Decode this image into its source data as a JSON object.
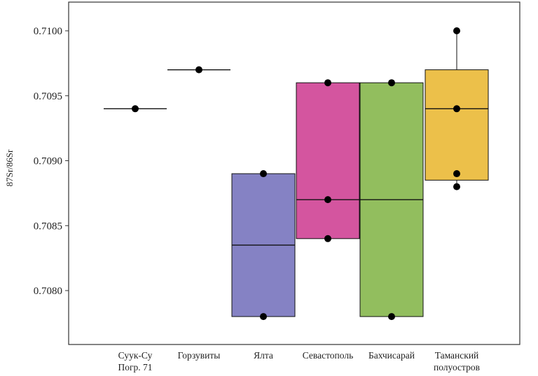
{
  "chart_data": {
    "type": "boxplot",
    "title": "",
    "xlabel": "",
    "ylabel": "87Sr/86Sr",
    "ylim": [
      0.70775,
      0.7102
    ],
    "yticks": [
      "0.7080",
      "0.7085",
      "0.7090",
      "0.7095",
      "0.7100"
    ],
    "yticks_values": [
      0.708,
      0.7085,
      0.709,
      0.7095,
      0.71
    ],
    "grid": false,
    "legend": "none",
    "categories": [
      [
        "Суук-Су",
        "Погр. 71"
      ],
      [
        "Горзувиты"
      ],
      [
        "Ялта"
      ],
      [
        "Севастополь"
      ],
      [
        "Бахчисарай"
      ],
      [
        "Таманский",
        "полуостров"
      ]
    ],
    "groups": [
      {
        "q1": 0.7094,
        "median": 0.7094,
        "q3": 0.7094,
        "whisker_low": 0.7094,
        "whisker_high": 0.7094,
        "points": [
          0.7094
        ],
        "color": "#ffffff"
      },
      {
        "q1": 0.7097,
        "median": 0.7097,
        "q3": 0.7097,
        "whisker_low": 0.7097,
        "whisker_high": 0.7097,
        "points": [
          0.7097
        ],
        "color": "#ffffff"
      },
      {
        "q1": 0.7078,
        "median": 0.70835,
        "q3": 0.7089,
        "whisker_low": 0.7078,
        "whisker_high": 0.7089,
        "points": [
          0.7089,
          0.7078
        ],
        "color": "#8582c4"
      },
      {
        "q1": 0.7084,
        "median": 0.7087,
        "q3": 0.7096,
        "whisker_low": 0.7084,
        "whisker_high": 0.7096,
        "points": [
          0.7096,
          0.7087,
          0.7084
        ],
        "color": "#d4559f"
      },
      {
        "q1": 0.7078,
        "median": 0.7087,
        "q3": 0.7096,
        "whisker_low": 0.7078,
        "whisker_high": 0.7096,
        "points": [
          0.7096,
          0.7078
        ],
        "color": "#92be5e"
      },
      {
        "q1": 0.70885,
        "median": 0.7094,
        "q3": 0.7097,
        "whisker_low": 0.7088,
        "whisker_high": 0.71,
        "points": [
          0.71,
          0.7094,
          0.7089,
          0.7088
        ],
        "color": "#ecc04a"
      }
    ]
  }
}
